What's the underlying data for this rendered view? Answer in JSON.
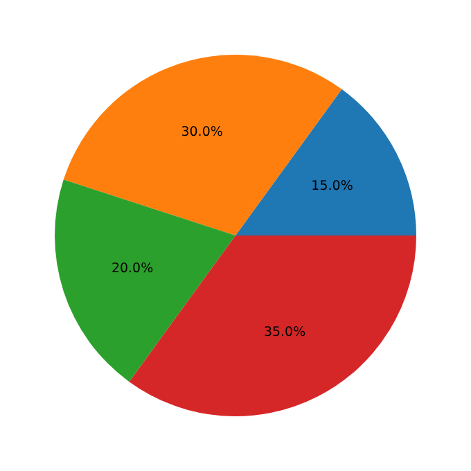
{
  "chart_data": {
    "type": "pie",
    "categories": [
      null,
      null,
      null,
      null
    ],
    "values": [
      15,
      30,
      20,
      35
    ],
    "colors": [
      "#1f77b4",
      "#ff7f0e",
      "#2ca02c",
      "#d62728"
    ],
    "value_labels": [
      "15.0%",
      "30.0%",
      "20.0%",
      "35.0%"
    ]
  }
}
